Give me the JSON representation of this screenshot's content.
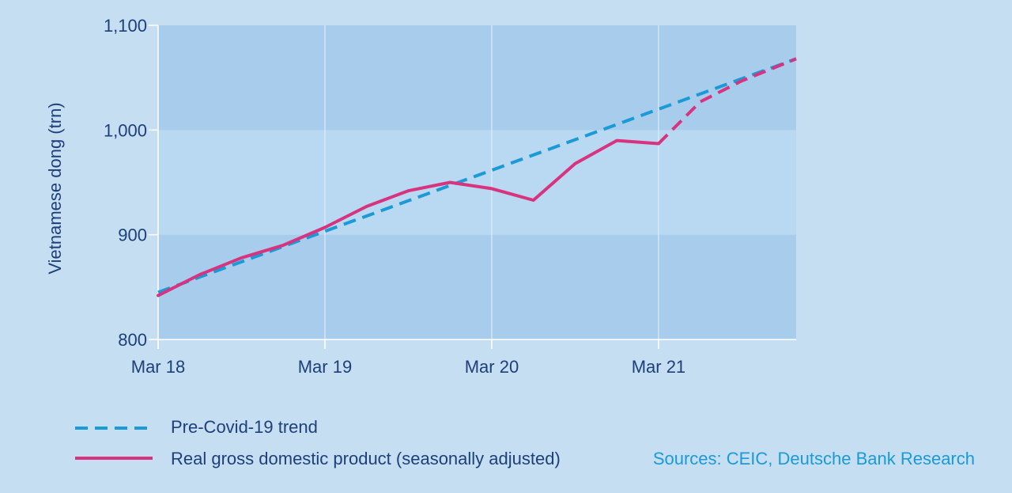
{
  "chart_data": {
    "type": "line",
    "ylabel": "Vietnamese dong (trn)",
    "ylim": [
      800,
      1100
    ],
    "yticks": [
      {
        "value": 800,
        "label": "800"
      },
      {
        "value": 900,
        "label": "900"
      },
      {
        "value": 1000,
        "label": "1,000"
      },
      {
        "value": 1100,
        "label": "1,100"
      }
    ],
    "xticks": [
      {
        "value": 0,
        "label": "Mar 18"
      },
      {
        "value": 4,
        "label": "Mar 19"
      },
      {
        "value": 8,
        "label": "Mar 20"
      },
      {
        "value": 12,
        "label": "Mar 21"
      }
    ],
    "xlim": [
      0,
      15.3
    ],
    "grid": true,
    "legend_position": "bottom-left",
    "series": [
      {
        "key": "trend",
        "name": "Pre-Covid-19 trend",
        "color": "#1a9ad6",
        "style": "dashed",
        "points": [
          [
            0,
            845
          ],
          [
            15.3,
            1068
          ]
        ]
      },
      {
        "key": "gdp",
        "name": "Real gross domestic product (seasonally adjusted)",
        "color": "#d8337f",
        "style": "solid",
        "points": [
          [
            0,
            842
          ],
          [
            1,
            862
          ],
          [
            2,
            878
          ],
          [
            3,
            890
          ],
          [
            4,
            907
          ],
          [
            5,
            927
          ],
          [
            6,
            942
          ],
          [
            7,
            950
          ],
          [
            8,
            944
          ],
          [
            9,
            933
          ],
          [
            10,
            968
          ],
          [
            11,
            990
          ],
          [
            12,
            987
          ]
        ],
        "dashed_continuation": [
          [
            12,
            987
          ],
          [
            13,
            1027
          ],
          [
            14,
            1047
          ],
          [
            15.3,
            1068
          ]
        ]
      }
    ],
    "source": "Sources: CEIC, Deutsche Bank Research"
  },
  "colors": {
    "background": "#c6def2",
    "band_dark": "#a8cdec",
    "band_light": "#b9d8f1",
    "axis_text": "#1d3f7a",
    "trend": "#1a9ad6",
    "gdp": "#d8337f"
  }
}
